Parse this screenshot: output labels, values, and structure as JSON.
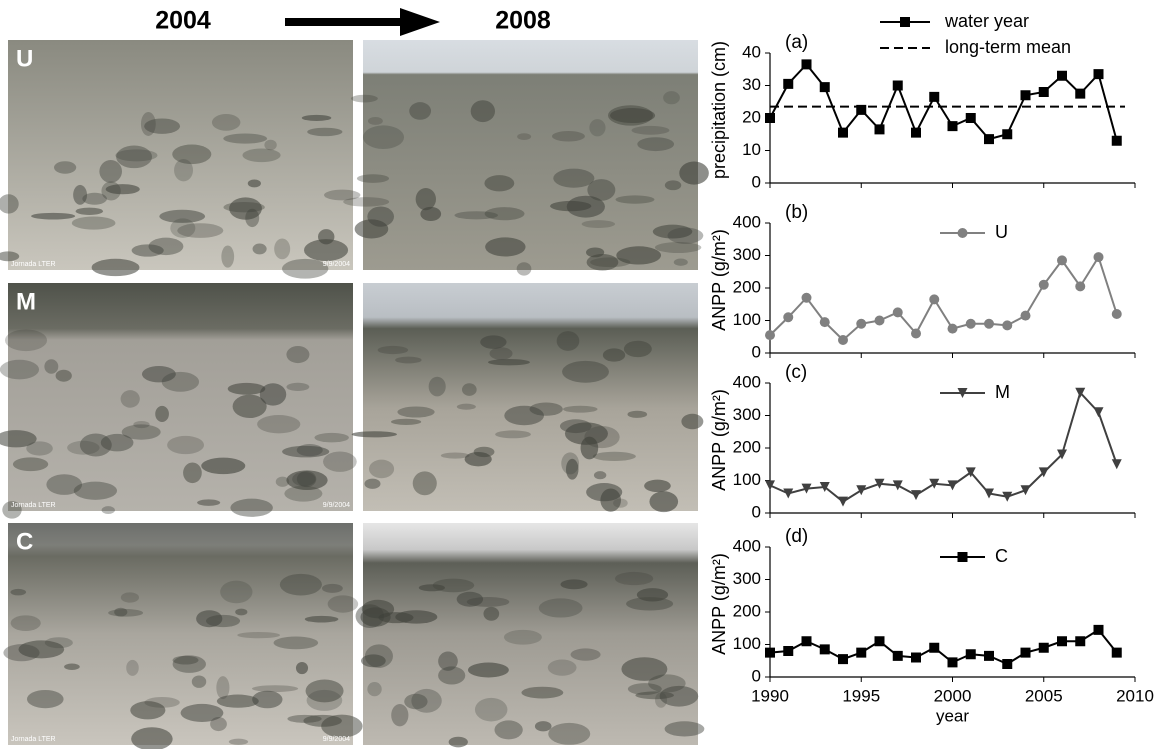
{
  "photos": {
    "years": [
      "2004",
      "2008"
    ],
    "rows": [
      {
        "label": "U",
        "credit": "Jornada LTER",
        "date": "9/9/2004"
      },
      {
        "label": "M",
        "credit": "Jornada LTER",
        "date": "9/9/2004"
      },
      {
        "label": "C",
        "credit": "Jornada LTER",
        "date": "9/9/2004"
      }
    ]
  },
  "chart_data": [
    {
      "type": "line",
      "panel": "(a)",
      "y_label": "precipitation (cm)",
      "x": [
        1990,
        1991,
        1992,
        1993,
        1994,
        1995,
        1996,
        1997,
        1998,
        1999,
        2000,
        2001,
        2002,
        2003,
        2004,
        2005,
        2006,
        2007,
        2008,
        2009
      ],
      "series": [
        {
          "name": "water year",
          "color": "#000000",
          "marker": "square",
          "values": [
            20,
            30.5,
            36.5,
            29.5,
            15.5,
            22.5,
            16.5,
            30,
            15.5,
            26.5,
            17.5,
            20,
            13.5,
            15,
            27,
            28,
            33,
            27.5,
            33.5,
            13
          ]
        }
      ],
      "reference_lines": [
        {
          "name": "long-term mean",
          "value": 23.5,
          "color": "#000000",
          "style": "dashed"
        }
      ],
      "xlim": [
        1990,
        2010
      ],
      "ylim": [
        0,
        40
      ],
      "yticks": [
        0,
        10,
        20,
        30,
        40
      ],
      "legend": "top"
    },
    {
      "type": "line",
      "panel": "(b)",
      "y_label": "ANPP (g/m²)",
      "x": [
        1990,
        1991,
        1992,
        1993,
        1994,
        1995,
        1996,
        1997,
        1998,
        1999,
        2000,
        2001,
        2002,
        2003,
        2004,
        2005,
        2006,
        2007,
        2008,
        2009
      ],
      "series": [
        {
          "name": "U",
          "color": "#808080",
          "marker": "circle",
          "values": [
            55,
            110,
            170,
            95,
            40,
            90,
            100,
            125,
            60,
            165,
            75,
            90,
            90,
            85,
            115,
            210,
            285,
            205,
            295,
            120
          ]
        }
      ],
      "xlim": [
        1990,
        2010
      ],
      "ylim": [
        0,
        400
      ],
      "yticks": [
        0,
        100,
        200,
        300,
        400
      ],
      "legend": "top"
    },
    {
      "type": "line",
      "panel": "(c)",
      "y_label": "ANPP (g/m²)",
      "x": [
        1990,
        1991,
        1992,
        1993,
        1994,
        1995,
        1996,
        1997,
        1998,
        1999,
        2000,
        2001,
        2002,
        2003,
        2004,
        2005,
        2006,
        2007,
        2008,
        2009
      ],
      "series": [
        {
          "name": "M",
          "color": "#404040",
          "marker": "triangle-down",
          "values": [
            85,
            60,
            75,
            80,
            35,
            70,
            90,
            85,
            55,
            90,
            85,
            125,
            60,
            50,
            70,
            125,
            180,
            370,
            310,
            150
          ]
        }
      ],
      "xlim": [
        1990,
        2010
      ],
      "ylim": [
        0,
        400
      ],
      "yticks": [
        0,
        100,
        200,
        300,
        400
      ],
      "legend": "top"
    },
    {
      "type": "line",
      "panel": "(d)",
      "y_label": "ANPP (g/m²)",
      "x_label": "year",
      "x": [
        1990,
        1991,
        1992,
        1993,
        1994,
        1995,
        1996,
        1997,
        1998,
        1999,
        2000,
        2001,
        2002,
        2003,
        2004,
        2005,
        2006,
        2007,
        2008,
        2009
      ],
      "series": [
        {
          "name": "C",
          "color": "#000000",
          "marker": "square",
          "values": [
            75,
            80,
            110,
            85,
            55,
            75,
            110,
            65,
            60,
            90,
            45,
            70,
            65,
            40,
            75,
            90,
            110,
            110,
            145,
            75
          ]
        }
      ],
      "xlim": [
        1990,
        2010
      ],
      "xticks": [
        1990,
        1995,
        2000,
        2005,
        2010
      ],
      "ylim": [
        0,
        400
      ],
      "yticks": [
        0,
        100,
        200,
        300,
        400
      ],
      "legend": "top"
    }
  ]
}
